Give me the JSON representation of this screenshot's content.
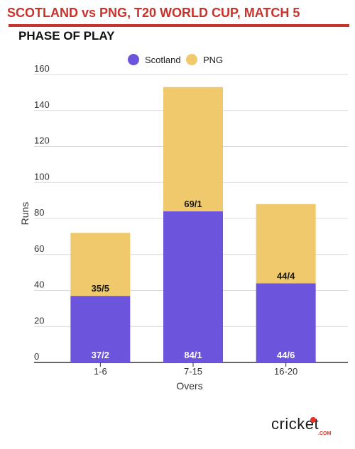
{
  "header": {
    "title": "SCOTLAND vs PNG, T20 WORLD CUP, MATCH 5"
  },
  "chart_data": {
    "type": "bar",
    "stacked": true,
    "title": "PHASE OF PLAY",
    "xlabel": "Overs",
    "ylabel": "Runs",
    "categories": [
      "1-6",
      "7-15",
      "16-20"
    ],
    "ylim": [
      0,
      160
    ],
    "yticks": [
      0,
      20,
      40,
      60,
      80,
      100,
      120,
      140,
      160
    ],
    "legend_position": "top-center",
    "series": [
      {
        "name": "Scotland",
        "color": "#6c54dc",
        "values": [
          37,
          84,
          44
        ],
        "labels": [
          "37/2",
          "84/1",
          "44/6"
        ]
      },
      {
        "name": "PNG",
        "color": "#efc96b",
        "values": [
          35,
          69,
          44
        ],
        "labels": [
          "35/5",
          "69/1",
          "44/4"
        ]
      }
    ],
    "grid": true
  },
  "logo": {
    "text": "cricket",
    "sub": ".COM",
    "accent": "#e8302a"
  },
  "colors": {
    "accent": "#c8332b",
    "grid": "#d9d9d9",
    "axis": "#333333"
  }
}
